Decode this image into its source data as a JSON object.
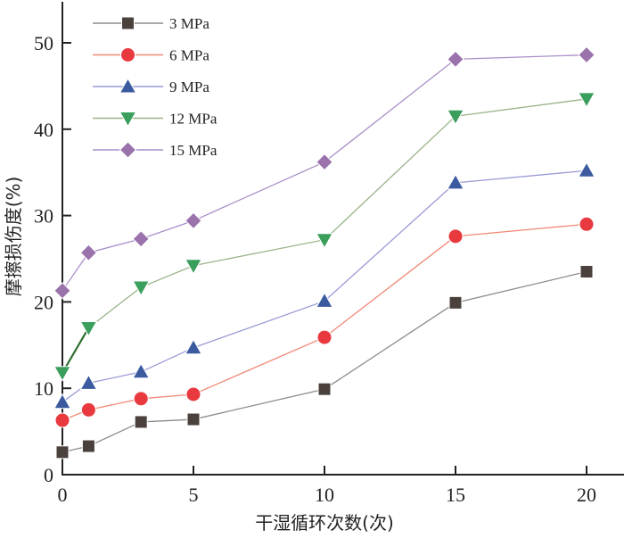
{
  "chart_data": {
    "type": "line",
    "title": "",
    "xlabel": "干湿循环次数(次)",
    "ylabel": "摩擦损伤度(%)",
    "x": [
      0,
      1,
      3,
      5,
      10,
      15,
      20
    ],
    "xlim": [
      0,
      22
    ],
    "ylim": [
      0,
      54
    ],
    "xticks": [
      0,
      5,
      10,
      15,
      20
    ],
    "xtick_labels": [
      "0",
      "5",
      "10",
      "15",
      "20"
    ],
    "yticks": [
      0,
      10,
      20,
      30,
      40,
      50
    ],
    "ytick_labels": [
      "0",
      "10",
      "20",
      "30",
      "40",
      "50"
    ],
    "grid": false,
    "legend_position": "top-left",
    "series": [
      {
        "name": "3 MPa",
        "marker": "square",
        "marker_color": "#4a403c",
        "line_color": "#8c8c8c",
        "values": [
          2.6,
          3.3,
          6.1,
          6.4,
          9.9,
          19.9,
          23.5
        ]
      },
      {
        "name": "6 MPa",
        "marker": "circle",
        "marker_color": "#e8393f",
        "line_color": "#f08a78",
        "values": [
          6.3,
          7.5,
          8.8,
          9.3,
          15.9,
          27.6,
          29.0
        ]
      },
      {
        "name": "9 MPa",
        "marker": "triangle-up",
        "marker_color": "#3b5aa0",
        "line_color": "#9a9ad6",
        "values": [
          8.4,
          10.6,
          11.9,
          14.7,
          20.1,
          33.8,
          35.2
        ]
      },
      {
        "name": "12 MPa",
        "marker": "triangle-down",
        "marker_color": "#3a9e5c",
        "line_color": "#9ab48c",
        "values": [
          11.8,
          17.0,
          21.7,
          24.2,
          27.2,
          41.5,
          43.5
        ]
      },
      {
        "name": "15 MPa",
        "marker": "diamond",
        "marker_color": "#9a72ac",
        "line_color": "#a98fc8",
        "values": [
          21.3,
          25.7,
          27.3,
          29.4,
          36.2,
          48.1,
          48.6
        ]
      }
    ]
  }
}
